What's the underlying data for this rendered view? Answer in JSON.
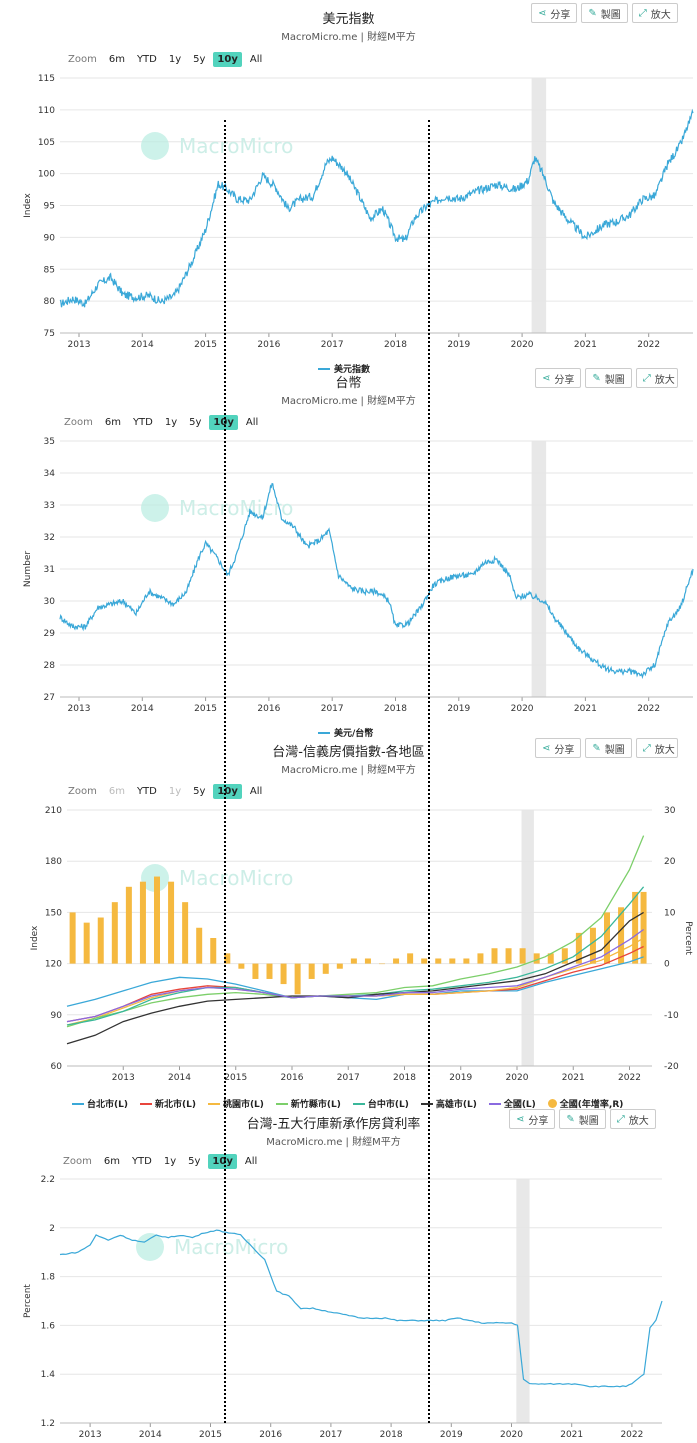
{
  "tools": {
    "share": "分享",
    "draw": "製圖",
    "expand": "放大"
  },
  "zoom": {
    "label": "Zoom",
    "opts": [
      "6m",
      "YTD",
      "1y",
      "5y",
      "10y",
      "All"
    ]
  },
  "watermark": "MacroMicro",
  "colors": {
    "line": "#3aa8d8",
    "bar": "#f5b940",
    "teal": "#52d3bd",
    "shade": "#e8e8e8"
  },
  "years": [
    "2013",
    "2014",
    "2015",
    "2016",
    "2017",
    "2018",
    "2019",
    "2020",
    "2021",
    "2022"
  ],
  "chart_data": [
    {
      "type": "line",
      "title": "美元指數",
      "subtitle": "MacroMicro.me | 財經M平方",
      "ylabel": "Index",
      "ylim": [
        75,
        115
      ],
      "yticks": [
        75,
        80,
        85,
        90,
        95,
        100,
        105,
        110,
        115
      ],
      "xlim": [
        2012.7,
        2022.7
      ],
      "shaded": [
        [
          2020.15,
          2020.38
        ]
      ],
      "legend": [
        "美元指數"
      ],
      "series": [
        {
          "name": "美元指數",
          "points": [
            [
              2012.7,
              79.5
            ],
            [
              2012.9,
              80.4
            ],
            [
              2013.1,
              79.6
            ],
            [
              2013.3,
              82.6
            ],
            [
              2013.5,
              83.7
            ],
            [
              2013.7,
              81.0
            ],
            [
              2013.9,
              80.6
            ],
            [
              2014.1,
              80.9
            ],
            [
              2014.3,
              79.9
            ],
            [
              2014.5,
              80.8
            ],
            [
              2014.6,
              82.4
            ],
            [
              2014.8,
              86.5
            ],
            [
              2015.0,
              91.2
            ],
            [
              2015.2,
              98.4
            ],
            [
              2015.35,
              97.5
            ],
            [
              2015.5,
              96.0
            ],
            [
              2015.7,
              95.8
            ],
            [
              2015.9,
              99.7
            ],
            [
              2016.1,
              98.0
            ],
            [
              2016.3,
              94.5
            ],
            [
              2016.5,
              96.0
            ],
            [
              2016.7,
              96.5
            ],
            [
              2016.9,
              101.5
            ],
            [
              2017.0,
              102.5
            ],
            [
              2017.2,
              100.5
            ],
            [
              2017.4,
              97.0
            ],
            [
              2017.6,
              93.0
            ],
            [
              2017.8,
              94.5
            ],
            [
              2018.0,
              90.0
            ],
            [
              2018.15,
              89.5
            ],
            [
              2018.3,
              93.0
            ],
            [
              2018.5,
              95.0
            ],
            [
              2018.8,
              96.5
            ],
            [
              2019.0,
              96.0
            ],
            [
              2019.3,
              97.3
            ],
            [
              2019.6,
              98.3
            ],
            [
              2019.9,
              97.5
            ],
            [
              2020.1,
              99.0
            ],
            [
              2020.2,
              102.5
            ],
            [
              2020.35,
              99.5
            ],
            [
              2020.5,
              95.5
            ],
            [
              2020.7,
              93.0
            ],
            [
              2020.9,
              91.0
            ],
            [
              2021.0,
              90.0
            ],
            [
              2021.3,
              92.0
            ],
            [
              2021.5,
              92.5
            ],
            [
              2021.7,
              93.5
            ],
            [
              2021.9,
              96.0
            ],
            [
              2022.1,
              96.5
            ],
            [
              2022.3,
              101.5
            ],
            [
              2022.5,
              104.5
            ],
            [
              2022.7,
              109.5
            ]
          ]
        }
      ]
    },
    {
      "type": "line",
      "title": "台幣",
      "subtitle": "MacroMicro.me | 財經M平方",
      "ylabel": "Number",
      "ylim": [
        27,
        35
      ],
      "yticks": [
        27,
        28,
        29,
        30,
        31,
        32,
        33,
        34,
        35
      ],
      "xlim": [
        2012.7,
        2022.7
      ],
      "shaded": [
        [
          2020.15,
          2020.38
        ]
      ],
      "legend": [
        "美元/台幣"
      ],
      "series": [
        {
          "name": "美元/台幣",
          "points": [
            [
              2012.7,
              29.5
            ],
            [
              2012.9,
              29.2
            ],
            [
              2013.1,
              29.2
            ],
            [
              2013.3,
              29.8
            ],
            [
              2013.5,
              29.9
            ],
            [
              2013.7,
              30.0
            ],
            [
              2013.9,
              29.6
            ],
            [
              2014.1,
              30.3
            ],
            [
              2014.3,
              30.1
            ],
            [
              2014.5,
              29.9
            ],
            [
              2014.7,
              30.3
            ],
            [
              2014.9,
              31.4
            ],
            [
              2015.0,
              31.8
            ],
            [
              2015.2,
              31.3
            ],
            [
              2015.35,
              30.8
            ],
            [
              2015.5,
              31.5
            ],
            [
              2015.7,
              32.8
            ],
            [
              2015.9,
              32.6
            ],
            [
              2016.05,
              33.7
            ],
            [
              2016.2,
              32.6
            ],
            [
              2016.4,
              32.3
            ],
            [
              2016.6,
              31.7
            ],
            [
              2016.8,
              31.9
            ],
            [
              2016.95,
              32.2
            ],
            [
              2017.1,
              30.8
            ],
            [
              2017.3,
              30.4
            ],
            [
              2017.5,
              30.3
            ],
            [
              2017.7,
              30.3
            ],
            [
              2017.9,
              30.0
            ],
            [
              2018.0,
              29.2
            ],
            [
              2018.2,
              29.3
            ],
            [
              2018.4,
              29.8
            ],
            [
              2018.6,
              30.5
            ],
            [
              2018.8,
              30.7
            ],
            [
              2019.0,
              30.8
            ],
            [
              2019.2,
              30.8
            ],
            [
              2019.4,
              31.2
            ],
            [
              2019.6,
              31.3
            ],
            [
              2019.8,
              30.8
            ],
            [
              2019.9,
              30.1
            ],
            [
              2020.1,
              30.2
            ],
            [
              2020.35,
              30.0
            ],
            [
              2020.5,
              29.5
            ],
            [
              2020.7,
              29.0
            ],
            [
              2020.9,
              28.5
            ],
            [
              2021.1,
              28.2
            ],
            [
              2021.3,
              27.9
            ],
            [
              2021.5,
              27.8
            ],
            [
              2021.7,
              27.8
            ],
            [
              2021.9,
              27.7
            ],
            [
              2022.1,
              28.0
            ],
            [
              2022.3,
              29.3
            ],
            [
              2022.5,
              29.8
            ],
            [
              2022.7,
              31.0
            ]
          ]
        }
      ]
    },
    {
      "type": "line",
      "title": "台灣-信義房價指數-各地區",
      "subtitle": "MacroMicro.me | 財經M平方",
      "ylabel": "Index",
      "y2label": "Percent",
      "ylim": [
        60,
        210
      ],
      "y2lim": [
        -20,
        30
      ],
      "yticks": [
        60,
        90,
        120,
        150,
        180,
        210
      ],
      "y2ticks": [
        -20,
        -10,
        0,
        10,
        20,
        30
      ],
      "xlim": [
        2012.0,
        2022.4
      ],
      "shaded": [
        [
          2020.08,
          2020.3
        ]
      ],
      "legend": [
        "台北市(L)",
        "新北市(L)",
        "桃園市(L)",
        "新竹縣市(L)",
        "台中市(L)",
        "高雄市(L)",
        "全國(L)",
        "全國(年增率,R)"
      ],
      "x": [
        2012.0,
        2012.5,
        2013.0,
        2013.5,
        2014.0,
        2014.5,
        2015.0,
        2015.5,
        2016.0,
        2016.5,
        2017.0,
        2017.5,
        2018.0,
        2018.5,
        2019.0,
        2019.5,
        2020.0,
        2020.5,
        2021.0,
        2021.5,
        2022.0,
        2022.25
      ],
      "series": [
        {
          "name": "台北市(L)",
          "color": "#3aa8d8",
          "values": [
            95,
            99,
            104,
            109,
            112,
            111,
            108,
            104,
            100,
            101,
            100,
            99,
            102,
            102,
            104,
            104,
            104,
            109,
            113,
            117,
            121,
            124
          ]
        },
        {
          "name": "新北市(L)",
          "color": "#e8453c",
          "values": [
            86,
            89,
            95,
            102,
            105,
            107,
            106,
            103,
            100,
            101,
            101,
            101,
            102,
            102,
            103,
            104,
            105,
            110,
            115,
            119,
            126,
            130
          ]
        },
        {
          "name": "桃園市(L)",
          "color": "#f5b940",
          "values": [
            84,
            88,
            94,
            100,
            104,
            106,
            105,
            103,
            100,
            101,
            101,
            101,
            102,
            102,
            103,
            104,
            106,
            112,
            117,
            122,
            130,
            135
          ]
        },
        {
          "name": "新竹縣市(L)",
          "color": "#7ccf6a",
          "values": [
            83,
            88,
            92,
            97,
            100,
            102,
            103,
            102,
            100,
            101,
            102,
            103,
            106,
            107,
            111,
            114,
            118,
            124,
            133,
            147,
            175,
            195
          ]
        },
        {
          "name": "台中市(L)",
          "color": "#3ab79a",
          "values": [
            84,
            87,
            92,
            99,
            103,
            106,
            106,
            103,
            100,
            101,
            101,
            102,
            104,
            105,
            107,
            109,
            112,
            117,
            124,
            136,
            155,
            165
          ]
        },
        {
          "name": "高雄市(L)",
          "color": "#333333",
          "values": [
            73,
            78,
            86,
            91,
            95,
            98,
            99,
            100,
            101,
            101,
            100,
            102,
            103,
            104,
            106,
            108,
            110,
            114,
            121,
            128,
            145,
            150
          ]
        },
        {
          "name": "全國(L)",
          "color": "#8a6ae0",
          "values": [
            86,
            89,
            95,
            101,
            104,
            106,
            105,
            103,
            100,
            101,
            101,
            101,
            103,
            103,
            105,
            106,
            107,
            112,
            118,
            124,
            134,
            140
          ]
        }
      ],
      "bars": {
        "name": "全國(年增率,R)",
        "x": [
          2012.1,
          2012.35,
          2012.6,
          2012.85,
          2013.1,
          2013.35,
          2013.6,
          2013.85,
          2014.1,
          2014.35,
          2014.6,
          2014.85,
          2015.1,
          2015.35,
          2015.6,
          2015.85,
          2016.1,
          2016.35,
          2016.6,
          2016.85,
          2017.1,
          2017.35,
          2017.6,
          2017.85,
          2018.1,
          2018.35,
          2018.6,
          2018.85,
          2019.1,
          2019.35,
          2019.6,
          2019.85,
          2020.1,
          2020.35,
          2020.6,
          2020.85,
          2021.1,
          2021.35,
          2021.6,
          2021.85,
          2022.1,
          2022.25
        ],
        "values": [
          10,
          8,
          9,
          12,
          15,
          16,
          17,
          16,
          12,
          7,
          5,
          2,
          -1,
          -3,
          -3,
          -4,
          -6,
          -3,
          -2,
          -1,
          1,
          1,
          0,
          1,
          2,
          1,
          1,
          1,
          1,
          2,
          3,
          3,
          3,
          2,
          2,
          3,
          6,
          7,
          10,
          11,
          14,
          14
        ]
      }
    },
    {
      "type": "line",
      "title": "台灣-五大行庫新承作房貸利率",
      "subtitle": "MacroMicro.me | 財經M平方",
      "ylabel": "Percent",
      "ylim": [
        1.2,
        2.2
      ],
      "yticks": [
        1.2,
        1.4,
        1.6,
        1.8,
        2,
        2.2
      ],
      "xlim": [
        2012.5,
        2022.5
      ],
      "shaded": [
        [
          2020.08,
          2020.3
        ]
      ],
      "series": [
        {
          "name": "五大行庫新承作房貸利率",
          "points": [
            [
              2012.5,
              1.89
            ],
            [
              2012.8,
              1.9
            ],
            [
              2013.0,
              1.93
            ],
            [
              2013.1,
              1.97
            ],
            [
              2013.3,
              1.95
            ],
            [
              2013.5,
              1.97
            ],
            [
              2013.7,
              1.95
            ],
            [
              2013.9,
              1.94
            ],
            [
              2014.1,
              1.97
            ],
            [
              2014.3,
              1.96
            ],
            [
              2014.5,
              1.97
            ],
            [
              2014.7,
              1.96
            ],
            [
              2014.9,
              1.98
            ],
            [
              2015.1,
              1.99
            ],
            [
              2015.3,
              1.98
            ],
            [
              2015.5,
              1.97
            ],
            [
              2015.7,
              1.92
            ],
            [
              2015.9,
              1.87
            ],
            [
              2016.1,
              1.74
            ],
            [
              2016.3,
              1.72
            ],
            [
              2016.5,
              1.67
            ],
            [
              2016.7,
              1.67
            ],
            [
              2016.9,
              1.66
            ],
            [
              2017.1,
              1.65
            ],
            [
              2017.3,
              1.64
            ],
            [
              2017.5,
              1.63
            ],
            [
              2017.7,
              1.63
            ],
            [
              2017.9,
              1.63
            ],
            [
              2018.1,
              1.62
            ],
            [
              2018.3,
              1.62
            ],
            [
              2018.5,
              1.62
            ],
            [
              2018.7,
              1.62
            ],
            [
              2018.9,
              1.62
            ],
            [
              2019.1,
              1.63
            ],
            [
              2019.3,
              1.62
            ],
            [
              2019.5,
              1.61
            ],
            [
              2019.7,
              1.61
            ],
            [
              2019.9,
              1.61
            ],
            [
              2020.0,
              1.61
            ],
            [
              2020.1,
              1.6
            ],
            [
              2020.2,
              1.38
            ],
            [
              2020.3,
              1.36
            ],
            [
              2020.5,
              1.36
            ],
            [
              2020.7,
              1.36
            ],
            [
              2020.9,
              1.36
            ],
            [
              2021.1,
              1.36
            ],
            [
              2021.3,
              1.35
            ],
            [
              2021.5,
              1.35
            ],
            [
              2021.7,
              1.35
            ],
            [
              2021.9,
              1.35
            ],
            [
              2022.0,
              1.36
            ],
            [
              2022.2,
              1.4
            ],
            [
              2022.3,
              1.59
            ],
            [
              2022.4,
              1.62
            ],
            [
              2022.5,
              1.7
            ]
          ]
        }
      ]
    }
  ]
}
